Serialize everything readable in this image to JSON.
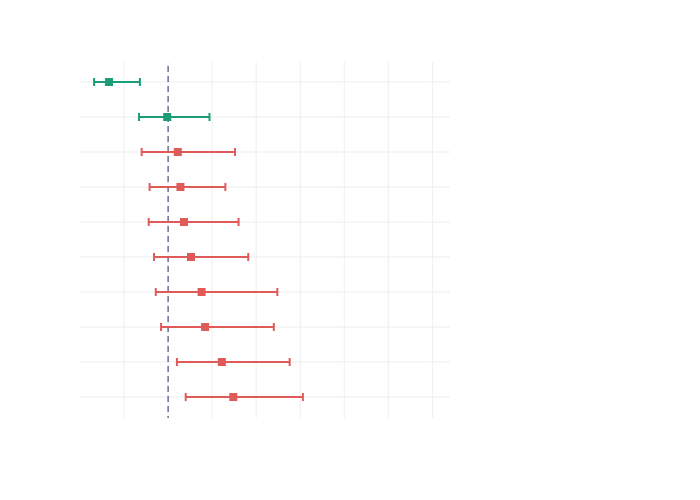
{
  "chart_data": {
    "type": "scatter",
    "variant": "forest-plot",
    "title": "",
    "xlabel": "",
    "ylabel": "",
    "grid": true,
    "legend": "none",
    "xlim": [
      -1.0,
      3.2
    ],
    "x_gridlines": [
      -0.5,
      0,
      0.5,
      1.0,
      1.5,
      2.0,
      2.5,
      3.0
    ],
    "reference_line_x": 0,
    "colors": {
      "green": "#1b9e77",
      "red": "#e05a5a",
      "reference": "#4a4a7a"
    },
    "rows": [
      {
        "estimate": -0.67,
        "lower": -0.84,
        "upper": -0.32,
        "color": "green"
      },
      {
        "estimate": -0.01,
        "lower": -0.33,
        "upper": 0.47,
        "color": "green"
      },
      {
        "estimate": 0.11,
        "lower": -0.3,
        "upper": 0.76,
        "color": "red"
      },
      {
        "estimate": 0.14,
        "lower": -0.21,
        "upper": 0.65,
        "color": "red"
      },
      {
        "estimate": 0.18,
        "lower": -0.22,
        "upper": 0.8,
        "color": "red"
      },
      {
        "estimate": 0.26,
        "lower": -0.16,
        "upper": 0.91,
        "color": "red"
      },
      {
        "estimate": 0.38,
        "lower": -0.14,
        "upper": 1.24,
        "color": "red"
      },
      {
        "estimate": 0.42,
        "lower": -0.08,
        "upper": 1.2,
        "color": "red"
      },
      {
        "estimate": 0.61,
        "lower": 0.1,
        "upper": 1.38,
        "color": "red"
      },
      {
        "estimate": 0.74,
        "lower": 0.2,
        "upper": 1.53,
        "color": "red"
      }
    ]
  }
}
